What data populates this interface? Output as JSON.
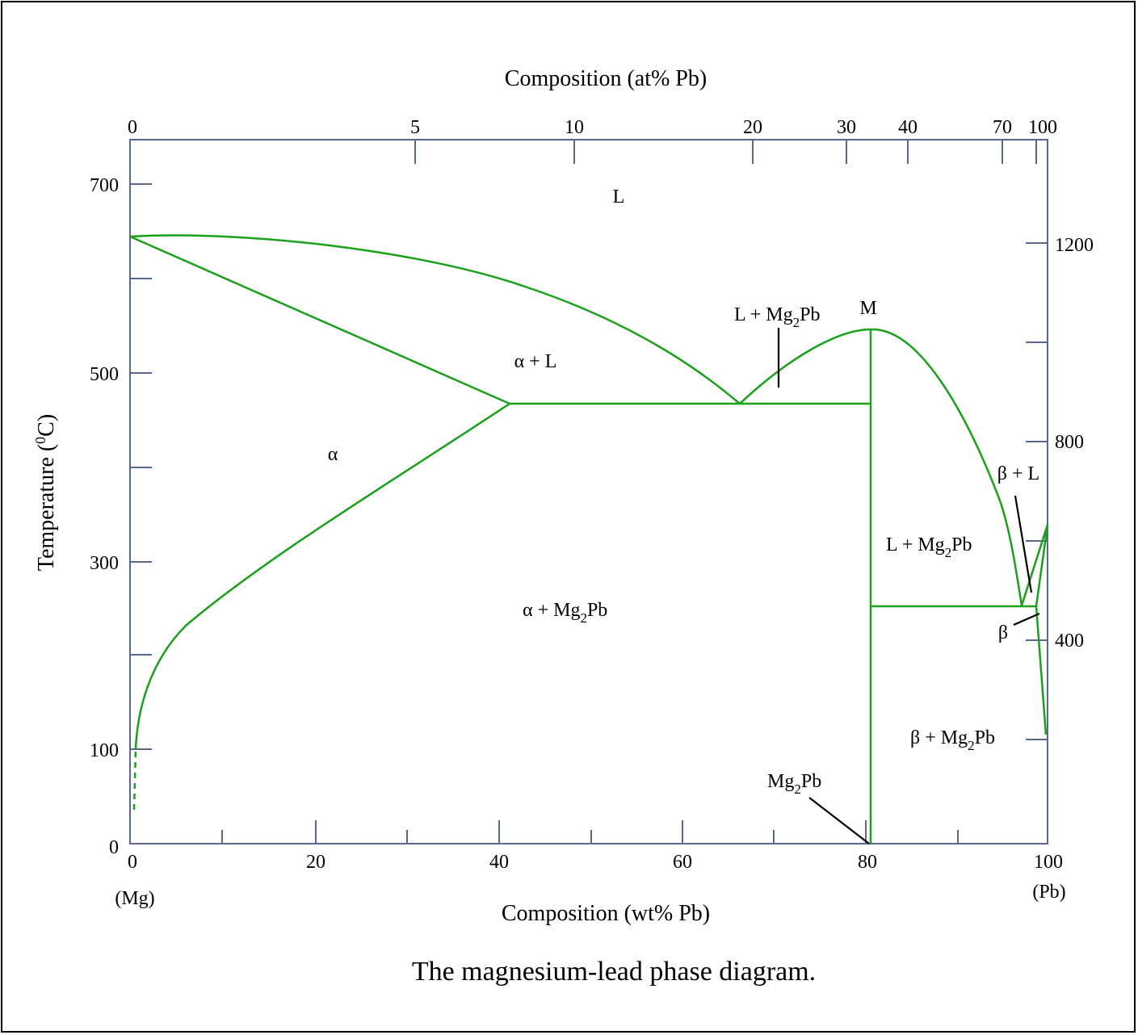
{
  "caption": "The magnesium-lead phase diagram.",
  "chart_data": {
    "type": "phase-diagram",
    "xlabel": "Composition (wt% Pb)",
    "x2label": "Composition (at% Pb)",
    "ylabel_main": "Temperature (",
    "ylabel_sup": "0",
    "ylabel_end": "C)",
    "xlim": [
      0,
      100
    ],
    "ylim_c": [
      0,
      700
    ],
    "x_ticks": [
      "0",
      "20",
      "40",
      "60",
      "80",
      "100"
    ],
    "x_end_labels": {
      "left": "(Mg)",
      "right": "(Pb)"
    },
    "top_ticks": [
      "0",
      "5",
      "10",
      "20",
      "30",
      "40",
      "70",
      "100"
    ],
    "y_ticks_left": [
      "0",
      "100",
      "300",
      "500",
      "700"
    ],
    "y_ticks_right": [
      "400",
      "800",
      "1200"
    ],
    "region_labels": {
      "L": "L",
      "alpha_L": "α + L",
      "alpha": "α",
      "alpha_mg2pb": "α + Mg",
      "L_mg2pb_left": "L + Mg",
      "M": "M",
      "L_mg2pb_right": "L + Mg",
      "beta_L": "β + L",
      "beta": "β",
      "beta_mg2pb": "β + Mg",
      "mg2pb": "Mg",
      "sub2": "2",
      "pb": "Pb"
    },
    "invariants": {
      "mg_melting_c": 650,
      "eutectic1": {
        "wt_pb": 67,
        "t_c": 466
      },
      "alpha_max_solubility_wt_pb": 41,
      "congruent_M": {
        "wt_pb": 81,
        "t_c": 550
      },
      "compound_mg2pb_wt_pb": 81,
      "eutectic2": {
        "wt_pb": 97,
        "t_c": 253
      },
      "pb_melting_c": 327
    },
    "colors": {
      "lines": "#1aa01a",
      "axis": "#5a6890",
      "frame": "#000000"
    }
  }
}
